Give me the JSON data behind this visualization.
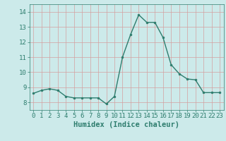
{
  "x": [
    0,
    1,
    2,
    3,
    4,
    5,
    6,
    7,
    8,
    9,
    10,
    11,
    12,
    13,
    14,
    15,
    16,
    17,
    18,
    19,
    20,
    21,
    22,
    23
  ],
  "y": [
    8.6,
    8.8,
    8.9,
    8.8,
    8.4,
    8.3,
    8.3,
    8.3,
    8.3,
    7.9,
    8.4,
    11.0,
    12.5,
    13.8,
    13.3,
    13.3,
    12.3,
    10.5,
    9.9,
    9.55,
    9.5,
    8.65,
    8.65,
    8.65
  ],
  "line_color": "#2e7d6e",
  "marker": "o",
  "marker_size": 2.0,
  "linewidth": 1.0,
  "bg_color": "#cceaea",
  "grid_color": "#b0d0d0",
  "tick_color": "#2e7d6e",
  "label_color": "#2e7d6e",
  "xlabel": "Humidex (Indice chaleur)",
  "xlim": [
    -0.5,
    23.5
  ],
  "ylim": [
    7.5,
    14.5
  ],
  "yticks": [
    8,
    9,
    10,
    11,
    12,
    13,
    14
  ],
  "xticks": [
    0,
    1,
    2,
    3,
    4,
    5,
    6,
    7,
    8,
    9,
    10,
    11,
    12,
    13,
    14,
    15,
    16,
    17,
    18,
    19,
    20,
    21,
    22,
    23
  ],
  "font_size": 6.5,
  "xlabel_font_size": 7.5
}
